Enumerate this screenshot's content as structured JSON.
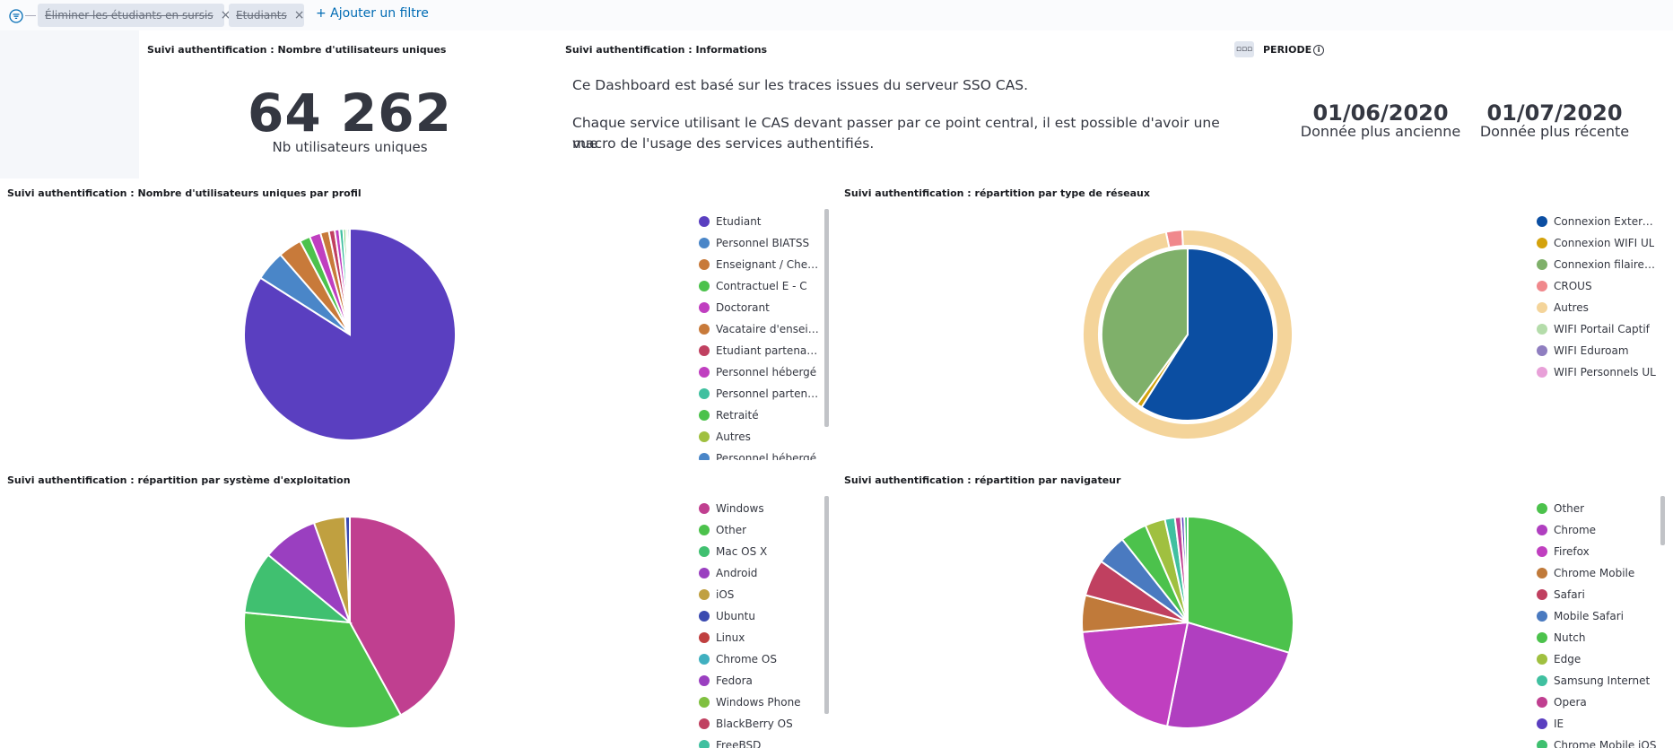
{
  "filters": [
    {
      "label": "Éliminer les étudiants en sursis"
    },
    {
      "label": "Etudiants"
    }
  ],
  "add_filter_label": "+ Ajouter un filtre",
  "panels": {
    "users": {
      "title": "Suivi authentification : Nombre d'utilisateurs uniques",
      "value": "64 262",
      "label": "Nb utilisateurs uniques"
    },
    "info": {
      "title": "Suivi authentification : Informations",
      "line1": "Ce Dashboard est basé sur les traces issues du serveur SSO CAS.",
      "line2": "Chaque service utilisant le CAS devant passer par ce point central, il est possible d'avoir une vue",
      "line3": "macro de l'usage des services authentifiés."
    },
    "periode": {
      "label": "PERIODE",
      "oldest_value": "01/06/2020",
      "oldest_label": "Donnée plus ancienne",
      "newest_value": "01/07/2020",
      "newest_label": "Donnée plus récente"
    }
  },
  "chart_data": [
    {
      "id": "profil",
      "type": "pie",
      "title": "Suivi authentification : Nombre d'utilisateurs uniques par profil",
      "legend": [
        "Etudiant",
        "Personnel BIATSS",
        "Enseignant / Cherc...",
        "Contractuel E - C",
        "Doctorant",
        "Vacataire d'enseig...",
        "Etudiant partenaire",
        "Personnel hébergé",
        "Personnel partenaire",
        "Retraité",
        "Autres",
        "Personnel hébergé"
      ],
      "legend_colors": [
        "#5a3fc0",
        "#4a86c8",
        "#c87a3a",
        "#4cc24c",
        "#c03fc0",
        "#c87a3a",
        "#c04060",
        "#c03fc0",
        "#40c0a0",
        "#4cc24c",
        "#a0c040",
        "#4a86c8"
      ],
      "values": [
        84.0,
        4.6,
        3.6,
        1.6,
        1.7,
        1.3,
        0.9,
        0.7,
        0.6,
        0.4,
        0.3,
        0.3
      ],
      "colors": [
        "#5a3fc0",
        "#4a86c8",
        "#c87a3a",
        "#4cc24c",
        "#c03fc0",
        "#c87a3a",
        "#c04060",
        "#c03fc0",
        "#40c0a0",
        "#4cc24c",
        "#a0c040",
        "#4a86c8"
      ]
    },
    {
      "id": "reseaux",
      "type": "pie",
      "title": "Suivi authentification : répartition par type de réseaux",
      "legend": [
        "Connexion Externe ...",
        "Connexion WIFI UL",
        "Connexion filaire UL",
        "CROUS",
        "Autres",
        "WIFI Portail Captif",
        "WIFI Eduroam",
        "WIFI Personnels UL"
      ],
      "legend_colors": [
        "#0b4ea2",
        "#d4a20c",
        "#7fb06a",
        "#f0888c",
        "#f4d49a",
        "#b4dcaa",
        "#8f7ec0",
        "#e8a0d8"
      ],
      "inner": {
        "values": [
          59.0,
          1.0,
          40.0
        ],
        "colors": [
          "#0b4ea2",
          "#d4a20c",
          "#7fb06a"
        ]
      },
      "outer": {
        "values": [
          2.5,
          97.5
        ],
        "colors": [
          "#f0888c",
          "#f4d49a"
        ]
      }
    },
    {
      "id": "os",
      "type": "pie",
      "title": "Suivi authentification : répartition par système d'exploitation",
      "legend": [
        "Windows",
        "Other",
        "Mac OS X",
        "Android",
        "iOS",
        "Ubuntu",
        "Linux",
        "Chrome OS",
        "Fedora",
        "Windows Phone",
        "BlackBerry OS",
        "FreeBSD"
      ],
      "legend_colors": [
        "#c03f90",
        "#4cc24c",
        "#40c070",
        "#9a3fc0",
        "#c0a040",
        "#3a4ab0",
        "#c04040",
        "#40b0c0",
        "#9a3fc0",
        "#80c040",
        "#c04060",
        "#40c0a0"
      ],
      "values": [
        42.0,
        34.5,
        9.5,
        8.5,
        4.8,
        0.7
      ],
      "colors": [
        "#c03f90",
        "#4cc24c",
        "#40c070",
        "#9a3fc0",
        "#c0a040",
        "#3a4ab0"
      ]
    },
    {
      "id": "nav",
      "type": "pie",
      "title": "Suivi authentification : répartition par navigateur",
      "legend": [
        "Other",
        "Chrome",
        "Firefox",
        "Chrome Mobile",
        "Safari",
        "Mobile Safari",
        "Nutch",
        "Edge",
        "Samsung Internet",
        "Opera",
        "IE",
        "Chrome Mobile iOS"
      ],
      "legend_colors": [
        "#4cc24c",
        "#b03fc0",
        "#c03fc0",
        "#c07a3a",
        "#c04060",
        "#4a7ac0",
        "#4cc24c",
        "#a0c040",
        "#40c0a0",
        "#c03f90",
        "#5a3fc0",
        "#40c070"
      ],
      "values": [
        29.0,
        23.0,
        20.0,
        5.5,
        5.5,
        4.5,
        4.0,
        3.0,
        1.5,
        0.9,
        0.5,
        0.5
      ],
      "colors": [
        "#4cc24c",
        "#b03fc0",
        "#c03fc0",
        "#c07a3a",
        "#c04060",
        "#4a7ac0",
        "#4cc24c",
        "#a0c040",
        "#40c0a0",
        "#c03f90",
        "#5a3fc0",
        "#40c070"
      ]
    }
  ]
}
